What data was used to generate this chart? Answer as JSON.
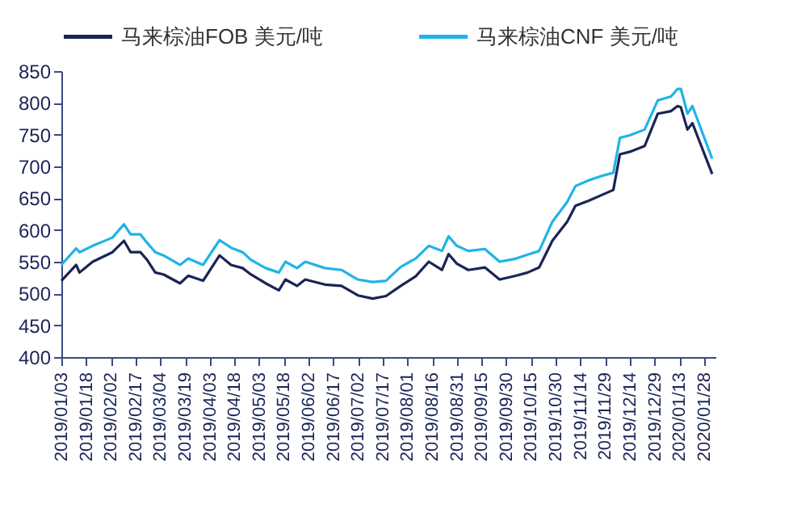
{
  "chart_data": {
    "type": "line",
    "legend": "top",
    "grid": false,
    "marker": "none",
    "line_style": "solid",
    "xlim": [
      "2019-01-03",
      "2020-02-04"
    ],
    "ylim": [
      400,
      850
    ],
    "yticks": [
      400,
      450,
      500,
      550,
      600,
      650,
      700,
      750,
      800,
      850
    ],
    "xticks": [
      {
        "value": "2019-01-03",
        "label": "2019/01/03"
      },
      {
        "value": "2019-01-18",
        "label": "2019/01/18"
      },
      {
        "value": "2019-02-02",
        "label": "2019/02/02"
      },
      {
        "value": "2019-02-17",
        "label": "2019/02/17"
      },
      {
        "value": "2019-03-04",
        "label": "2019/03/04"
      },
      {
        "value": "2019-03-19",
        "label": "2019/03/19"
      },
      {
        "value": "2019-04-03",
        "label": "2019/04/03"
      },
      {
        "value": "2019-04-18",
        "label": "2019/04/18"
      },
      {
        "value": "2019-05-03",
        "label": "2019/05/03"
      },
      {
        "value": "2019-05-18",
        "label": "2019/05/18"
      },
      {
        "value": "2019-06-02",
        "label": "2019/06/02"
      },
      {
        "value": "2019-06-17",
        "label": "2019/06/17"
      },
      {
        "value": "2019-07-02",
        "label": "2019/07/02"
      },
      {
        "value": "2019-07-17",
        "label": "2019/07/17"
      },
      {
        "value": "2019-08-01",
        "label": "2019/08/01"
      },
      {
        "value": "2019-08-16",
        "label": "2019/08/16"
      },
      {
        "value": "2019-08-31",
        "label": "2019/08/31"
      },
      {
        "value": "2019-09-15",
        "label": "2019/09/15"
      },
      {
        "value": "2019-09-30",
        "label": "2019/09/30"
      },
      {
        "value": "2019-10-15",
        "label": "2019/10/15"
      },
      {
        "value": "2019-10-30",
        "label": "2019/10/30"
      },
      {
        "value": "2019-11-14",
        "label": "2019/11/14"
      },
      {
        "value": "2019-11-29",
        "label": "2019/11/29"
      },
      {
        "value": "2019-12-14",
        "label": "2019/12/14"
      },
      {
        "value": "2019-12-29",
        "label": "2019/12/29"
      },
      {
        "value": "2020-01-13",
        "label": "2020/01/13"
      },
      {
        "value": "2020-01-28",
        "label": "2020/01/28"
      }
    ],
    "x": [
      "2019-01-03",
      "2019-01-12",
      "2019-01-14",
      "2019-01-22",
      "2019-02-03",
      "2019-02-10",
      "2019-02-14",
      "2019-02-20",
      "2019-02-24",
      "2019-03-01",
      "2019-03-06",
      "2019-03-16",
      "2019-03-21",
      "2019-03-30",
      "2019-04-09",
      "2019-04-16",
      "2019-04-23",
      "2019-04-28",
      "2019-05-07",
      "2019-05-15",
      "2019-05-19",
      "2019-05-26",
      "2019-05-31",
      "2019-06-12",
      "2019-06-22",
      "2019-07-02",
      "2019-07-11",
      "2019-07-19",
      "2019-07-28",
      "2019-08-06",
      "2019-08-14",
      "2019-08-22",
      "2019-08-26",
      "2019-08-31",
      "2019-09-07",
      "2019-09-17",
      "2019-09-26",
      "2019-10-06",
      "2019-10-13",
      "2019-10-20",
      "2019-10-28",
      "2019-11-06",
      "2019-11-11",
      "2019-11-19",
      "2019-11-27",
      "2019-12-04",
      "2019-12-08",
      "2019-12-14",
      "2019-12-23",
      "2019-12-31",
      "2020-01-08",
      "2020-01-12",
      "2020-01-14",
      "2020-01-18",
      "2020-01-21",
      "2020-02-02"
    ],
    "series": [
      {
        "name": "马来棕油FOB  美元/吨",
        "color": "#1a2456",
        "values": [
          520,
          545,
          533,
          550,
          565,
          583,
          565,
          565,
          553,
          533,
          530,
          516,
          528,
          520,
          560,
          545,
          540,
          530,
          516,
          505,
          522,
          512,
          522,
          514,
          512,
          497,
          492,
          496,
          512,
          527,
          550,
          537,
          562,
          547,
          537,
          541,
          522,
          528,
          533,
          541,
          583,
          613,
          638,
          646,
          655,
          663,
          719,
          723,
          732,
          783,
          787,
          795,
          793,
          758,
          768,
          688
        ]
      },
      {
        "name": "马来棕油CNF  美元/吨",
        "color": "#1fb4e6",
        "values": [
          545,
          571,
          565,
          575,
          588,
          609,
          593,
          593,
          580,
          565,
          560,
          545,
          555,
          545,
          584,
          572,
          565,
          553,
          540,
          533,
          550,
          540,
          550,
          540,
          537,
          522,
          518,
          520,
          542,
          555,
          575,
          567,
          590,
          575,
          567,
          570,
          550,
          555,
          561,
          567,
          613,
          644,
          669,
          678,
          685,
          690,
          745,
          749,
          758,
          804,
          810,
          822,
          822,
          783,
          795,
          712
        ]
      }
    ]
  }
}
